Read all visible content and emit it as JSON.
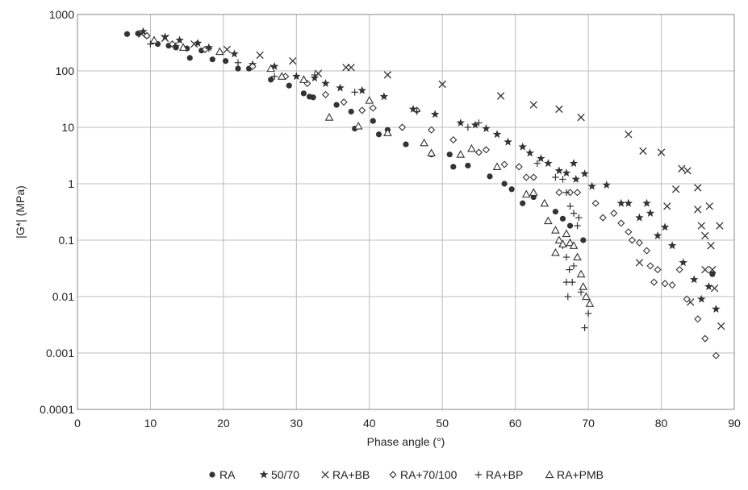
{
  "chart_data": {
    "type": "scatter",
    "title": "",
    "xlabel": "Phase angle (°)",
    "ylabel": "|G*| (MPa)",
    "xlim": [
      0,
      90
    ],
    "ylim": [
      0.0001,
      1000
    ],
    "y_scale": "log",
    "grid": true,
    "legend_position": "bottom-center",
    "x_ticks": [
      "0",
      "10",
      "20",
      "30",
      "40",
      "50",
      "60",
      "70",
      "80",
      "90"
    ],
    "y_ticks": [
      "0.0001",
      "0.001",
      "0.01",
      "0.1",
      "1",
      "10",
      "100",
      "1000"
    ],
    "series": [
      {
        "name": "RA",
        "symbol": "●",
        "marker": "dot",
        "points": [
          [
            6.8,
            450
          ],
          [
            8.3,
            460
          ],
          [
            9.5,
            420
          ],
          [
            11.0,
            300
          ],
          [
            12.5,
            280
          ],
          [
            13.5,
            260
          ],
          [
            15.0,
            250
          ],
          [
            15.4,
            170
          ],
          [
            17.0,
            230
          ],
          [
            18.5,
            160
          ],
          [
            20.3,
            150
          ],
          [
            22.0,
            110
          ],
          [
            23.5,
            110
          ],
          [
            26.5,
            70
          ],
          [
            29.0,
            55
          ],
          [
            31.0,
            40
          ],
          [
            31.8,
            35
          ],
          [
            32.3,
            34
          ],
          [
            35.5,
            25
          ],
          [
            37.5,
            19
          ],
          [
            38.0,
            9.5
          ],
          [
            40.5,
            13
          ],
          [
            41.3,
            7.5
          ],
          [
            42.5,
            9
          ],
          [
            45.0,
            5
          ],
          [
            48.5,
            3.3
          ],
          [
            51.0,
            3.3
          ],
          [
            51.5,
            2.0
          ],
          [
            53.5,
            2.1
          ],
          [
            56.5,
            1.35
          ],
          [
            58.5,
            1.0
          ],
          [
            59.5,
            0.8
          ],
          [
            61.0,
            0.45
          ],
          [
            62.5,
            0.58
          ],
          [
            65.5,
            0.32
          ],
          [
            66.5,
            0.24
          ],
          [
            67.5,
            0.18
          ],
          [
            69.3,
            0.1
          ],
          [
            87.0,
            0.025
          ]
        ]
      },
      {
        "name": "50/70",
        "symbol": "★",
        "marker": "star",
        "points": [
          [
            9.0,
            500
          ],
          [
            12.0,
            400
          ],
          [
            14.0,
            350
          ],
          [
            16.5,
            310
          ],
          [
            18.0,
            260
          ],
          [
            21.5,
            200
          ],
          [
            24.0,
            130
          ],
          [
            27.0,
            120
          ],
          [
            30.0,
            80
          ],
          [
            32.5,
            75
          ],
          [
            34.0,
            60
          ],
          [
            36.0,
            50
          ],
          [
            39.0,
            45
          ],
          [
            42.0,
            35
          ],
          [
            46.0,
            21
          ],
          [
            49.0,
            17
          ],
          [
            52.5,
            12
          ],
          [
            54.5,
            11
          ],
          [
            56.0,
            9.5
          ],
          [
            57.5,
            7.5
          ],
          [
            59.0,
            5.5
          ],
          [
            61.0,
            4.5
          ],
          [
            62.0,
            3.5
          ],
          [
            63.5,
            2.8
          ],
          [
            64.5,
            2.3
          ],
          [
            66.0,
            1.7
          ],
          [
            67.0,
            1.55
          ],
          [
            68.0,
            2.3
          ],
          [
            68.3,
            1.2
          ],
          [
            69.5,
            1.5
          ],
          [
            70.5,
            0.9
          ],
          [
            72.5,
            0.95
          ],
          [
            74.5,
            0.45
          ],
          [
            75.5,
            0.45
          ],
          [
            77.0,
            0.25
          ],
          [
            78.0,
            0.45
          ],
          [
            78.5,
            0.3
          ],
          [
            79.5,
            0.12
          ],
          [
            80.5,
            0.17
          ],
          [
            81.5,
            0.08
          ],
          [
            83.0,
            0.04
          ],
          [
            84.5,
            0.02
          ],
          [
            85.5,
            0.009
          ],
          [
            86.5,
            0.015
          ],
          [
            87.5,
            0.006
          ]
        ]
      },
      {
        "name": "RA+BB",
        "symbol": "×",
        "marker": "x",
        "points": [
          [
            8.8,
            450
          ],
          [
            12.0,
            380
          ],
          [
            16.0,
            300
          ],
          [
            20.5,
            240
          ],
          [
            25.0,
            190
          ],
          [
            29.5,
            150
          ],
          [
            33.0,
            90
          ],
          [
            36.8,
            115
          ],
          [
            37.5,
            115
          ],
          [
            42.5,
            85
          ],
          [
            50.0,
            58
          ],
          [
            58.0,
            36
          ],
          [
            62.5,
            25
          ],
          [
            66.0,
            21
          ],
          [
            69.0,
            15
          ],
          [
            75.5,
            7.5
          ],
          [
            77.5,
            3.8
          ],
          [
            80.0,
            3.6
          ],
          [
            82.0,
            0.8
          ],
          [
            82.8,
            1.85
          ],
          [
            83.6,
            1.7
          ],
          [
            85.0,
            0.85
          ],
          [
            85.0,
            0.35
          ],
          [
            85.5,
            0.18
          ],
          [
            86.0,
            0.12
          ],
          [
            86.6,
            0.4
          ],
          [
            86.8,
            0.08
          ],
          [
            87.0,
            0.03
          ],
          [
            87.3,
            0.014
          ],
          [
            88.0,
            0.18
          ],
          [
            88.2,
            0.003
          ],
          [
            77.0,
            0.04
          ],
          [
            80.8,
            0.4
          ],
          [
            84.0,
            0.008
          ],
          [
            86.0,
            0.03
          ]
        ]
      },
      {
        "name": "RA+70/100",
        "symbol": "◇",
        "marker": "diamond",
        "points": [
          [
            9.5,
            420
          ],
          [
            13.0,
            300
          ],
          [
            17.5,
            240
          ],
          [
            24.0,
            120
          ],
          [
            28.5,
            80
          ],
          [
            31.5,
            60
          ],
          [
            34.0,
            38
          ],
          [
            36.5,
            28
          ],
          [
            39.0,
            20
          ],
          [
            40.5,
            22
          ],
          [
            44.5,
            10
          ],
          [
            46.5,
            20
          ],
          [
            48.5,
            9
          ],
          [
            51.5,
            6
          ],
          [
            55.0,
            3.6
          ],
          [
            56.0,
            4
          ],
          [
            58.5,
            2.2
          ],
          [
            60.5,
            2
          ],
          [
            61.5,
            1.3
          ],
          [
            62.5,
            1.3
          ],
          [
            66.0,
            0.7
          ],
          [
            67.5,
            0.7
          ],
          [
            68.5,
            0.7
          ],
          [
            71.0,
            0.45
          ],
          [
            72.0,
            0.25
          ],
          [
            73.5,
            0.3
          ],
          [
            74.5,
            0.2
          ],
          [
            75.5,
            0.14
          ],
          [
            76.0,
            0.1
          ],
          [
            77.0,
            0.09
          ],
          [
            78.0,
            0.065
          ],
          [
            78.5,
            0.035
          ],
          [
            79.0,
            0.018
          ],
          [
            79.5,
            0.03
          ],
          [
            80.5,
            0.017
          ],
          [
            81.5,
            0.016
          ],
          [
            82.5,
            0.03
          ],
          [
            83.5,
            0.009
          ],
          [
            85.0,
            0.004
          ],
          [
            86.0,
            0.0018
          ],
          [
            87.5,
            0.0009
          ]
        ]
      },
      {
        "name": "RA+BP",
        "symbol": "+",
        "marker": "plus",
        "points": [
          [
            10.0,
            300
          ],
          [
            13.5,
            280
          ],
          [
            18.0,
            250
          ],
          [
            22.0,
            140
          ],
          [
            27.0,
            80
          ],
          [
            32.5,
            85
          ],
          [
            38.0,
            42
          ],
          [
            46.5,
            19
          ],
          [
            53.5,
            10
          ],
          [
            55.0,
            12
          ],
          [
            63.0,
            2.3
          ],
          [
            65.5,
            1.3
          ],
          [
            66.5,
            1.2
          ],
          [
            67.0,
            0.7
          ],
          [
            67.5,
            0.4
          ],
          [
            68.0,
            0.3
          ],
          [
            68.5,
            0.18
          ],
          [
            68.7,
            0.25
          ],
          [
            66.5,
            0.08
          ],
          [
            67.0,
            0.05
          ],
          [
            67.4,
            0.03
          ],
          [
            67.8,
            0.018
          ],
          [
            67.0,
            0.018
          ],
          [
            67.2,
            0.01
          ],
          [
            69.0,
            0.012
          ],
          [
            70.0,
            0.005
          ],
          [
            69.5,
            0.0028
          ],
          [
            68.0,
            0.035
          ]
        ]
      },
      {
        "name": "RA+PMB",
        "symbol": "△",
        "marker": "triangle",
        "points": [
          [
            10.5,
            350
          ],
          [
            14.5,
            260
          ],
          [
            19.5,
            220
          ],
          [
            26.5,
            110
          ],
          [
            28.0,
            80
          ],
          [
            31.0,
            70
          ],
          [
            34.5,
            15
          ],
          [
            38.5,
            10.5
          ],
          [
            40.0,
            30
          ],
          [
            42.5,
            8
          ],
          [
            47.5,
            5.3
          ],
          [
            48.5,
            3.5
          ],
          [
            52.5,
            3.3
          ],
          [
            54.0,
            4.2
          ],
          [
            57.5,
            2.0
          ],
          [
            61.5,
            0.65
          ],
          [
            62.5,
            0.7
          ],
          [
            64.0,
            0.45
          ],
          [
            64.5,
            0.22
          ],
          [
            65.5,
            0.15
          ],
          [
            66.0,
            0.1
          ],
          [
            67.0,
            0.13
          ],
          [
            67.5,
            0.09
          ],
          [
            68.0,
            0.08
          ],
          [
            68.5,
            0.05
          ],
          [
            69.0,
            0.025
          ],
          [
            69.3,
            0.015
          ],
          [
            69.7,
            0.01
          ],
          [
            70.2,
            0.0075
          ],
          [
            65.5,
            0.06
          ],
          [
            66.5,
            0.085
          ]
        ]
      }
    ]
  }
}
